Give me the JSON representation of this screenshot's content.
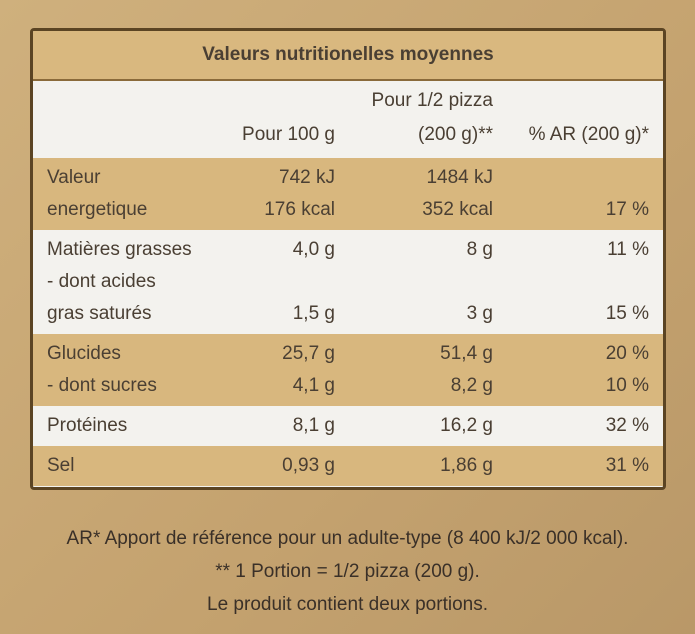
{
  "title": "Valeurs nutritionelles moyennes",
  "table": {
    "header": {
      "per_100g": [
        "Pour 100 g"
      ],
      "per_portion": [
        "Pour 1/2 pizza",
        "(200 g)**"
      ],
      "ar": [
        "% AR (200 g)*"
      ]
    },
    "bands": [
      {
        "shade": "tan",
        "lines": [
          {
            "label": "Valeur",
            "per_100g": "742 kJ",
            "per_portion": "1484 kJ"
          },
          {
            "label": "energetique",
            "per_100g": "176 kcal",
            "per_portion": "352 kcal",
            "ar": "17 %"
          }
        ]
      },
      {
        "shade": "white",
        "lines": [
          {
            "label": "Matières grasses",
            "per_100g": "4,0 g",
            "per_portion": "8 g",
            "ar": "11 %"
          },
          {
            "label": "- dont acides"
          },
          {
            "label": "gras saturés",
            "per_100g": "1,5 g",
            "per_portion": "3 g",
            "ar": "15 %"
          }
        ]
      },
      {
        "shade": "tan",
        "lines": [
          {
            "label": "Glucides",
            "per_100g": "25,7 g",
            "per_portion": "51,4 g",
            "ar": "20 %"
          },
          {
            "label": "- dont sucres",
            "per_100g": "4,1 g",
            "per_portion": "8,2 g",
            "ar": "10 %"
          }
        ]
      },
      {
        "shade": "white",
        "lines": [
          {
            "label": "Protéines",
            "per_100g": "8,1 g",
            "per_portion": "16,2 g",
            "ar": "32 %"
          }
        ]
      },
      {
        "shade": "tan",
        "lines": [
          {
            "label": "Sel",
            "per_100g": "0,93 g",
            "per_portion": "1,86 g",
            "ar": "31 %"
          }
        ]
      }
    ]
  },
  "footnotes": [
    "AR* Apport de référence pour un adulte-type (8 400 kJ/2 000 kcal).",
    "** 1 Portion = 1/2 pizza (200 g).",
    "Le produit contient deux portions."
  ]
}
